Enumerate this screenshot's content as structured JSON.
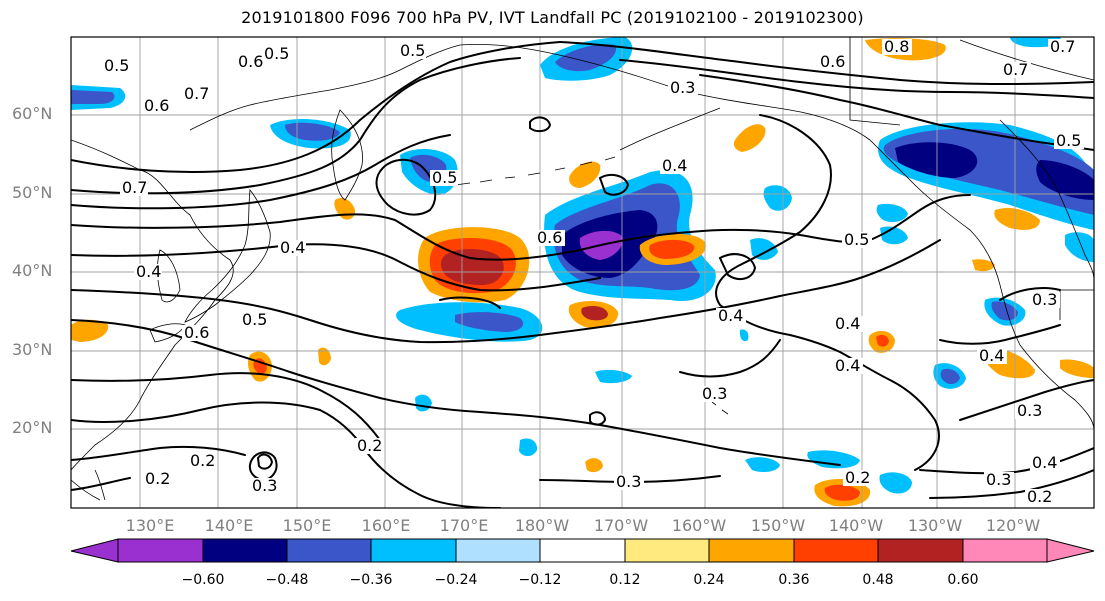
{
  "title": "2019101800 F096 700 hPa PV, IVT Landfall PC (2019102100 - 2019102300)",
  "lat_labels": [
    "60°N",
    "50°N",
    "40°N",
    "30°N",
    "20°N"
  ],
  "lon_labels": [
    "130°E",
    "140°E",
    "150°E",
    "160°E",
    "170°E",
    "180°W",
    "170°W",
    "160°W",
    "150°W",
    "140°W",
    "130°W",
    "120°W"
  ],
  "colorbar": {
    "ticks": [
      "−0.60",
      "−0.48",
      "−0.36",
      "−0.24",
      "−0.12",
      "0.12",
      "0.24",
      "0.36",
      "0.48",
      "0.60"
    ],
    "colors": [
      "#9b30d0",
      "#000080",
      "#3a56c8",
      "#00bfff",
      "#b0e0ff",
      "#ffffff",
      "#ffea80",
      "#ffa500",
      "#ff4000",
      "#b22222",
      "#ff88b8"
    ]
  },
  "contour_labels": [
    "0.5",
    "0.6",
    "0.5",
    "0.8",
    "0.7",
    "0.6",
    "0.5",
    "0.7",
    "0.6",
    "0.3",
    "0.5",
    "0.4",
    "0.7",
    "0.5",
    "0.4",
    "0.6",
    "0.5",
    "0.4",
    "0.7",
    "0.4",
    "0.6",
    "0.5",
    "0.4",
    "0.3",
    "0.4",
    "0.4",
    "0.3",
    "0.3",
    "0.4",
    "0.3",
    "0.2",
    "0.2",
    "0.3",
    "0.2",
    "0.2",
    "0.3",
    "0.2"
  ]
}
